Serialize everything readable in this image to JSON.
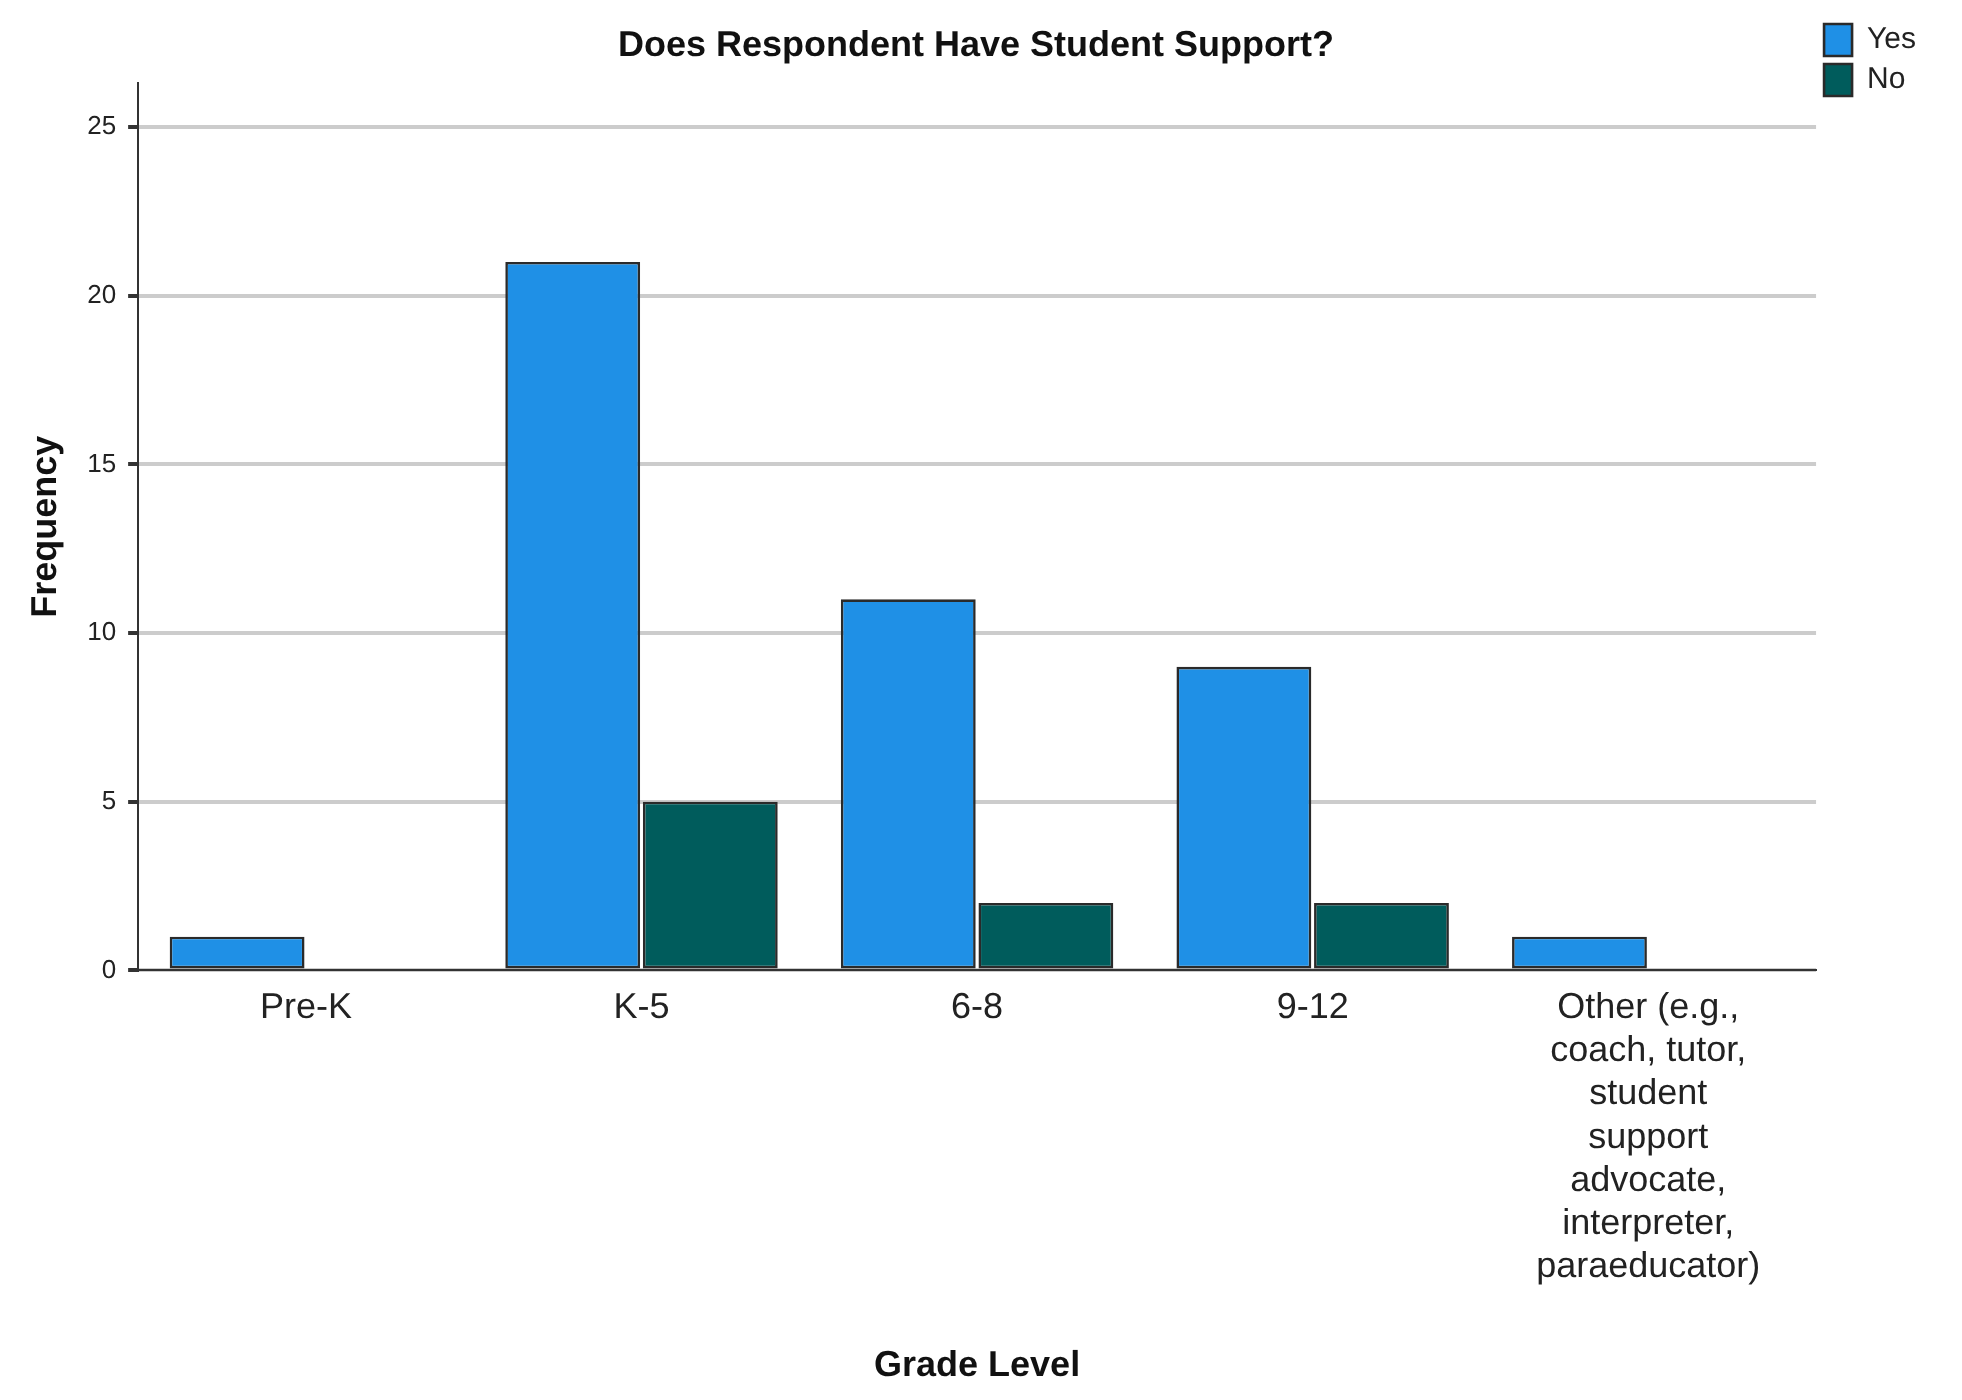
{
  "chart_data": {
    "type": "bar",
    "title": "Does Respondent Have Student Support?",
    "xlabel": "Grade Level",
    "ylabel": "Frequency",
    "categories": [
      "Pre-K",
      "K-5",
      "6-8",
      "9-12",
      "Other (e.g., coach, tutor, student support advocate, interpreter, paraeducator)"
    ],
    "series": [
      {
        "name": "Yes",
        "color": "#1f90e6",
        "values": [
          1,
          21,
          11,
          9,
          1
        ]
      },
      {
        "name": "No",
        "color": "#005c5c",
        "values": [
          null,
          5,
          2,
          2,
          null
        ]
      }
    ],
    "ylim": [
      0,
      26.3
    ],
    "yticks": [
      0,
      5,
      10,
      15,
      20,
      25
    ],
    "grid": "y",
    "legend": "top right"
  }
}
